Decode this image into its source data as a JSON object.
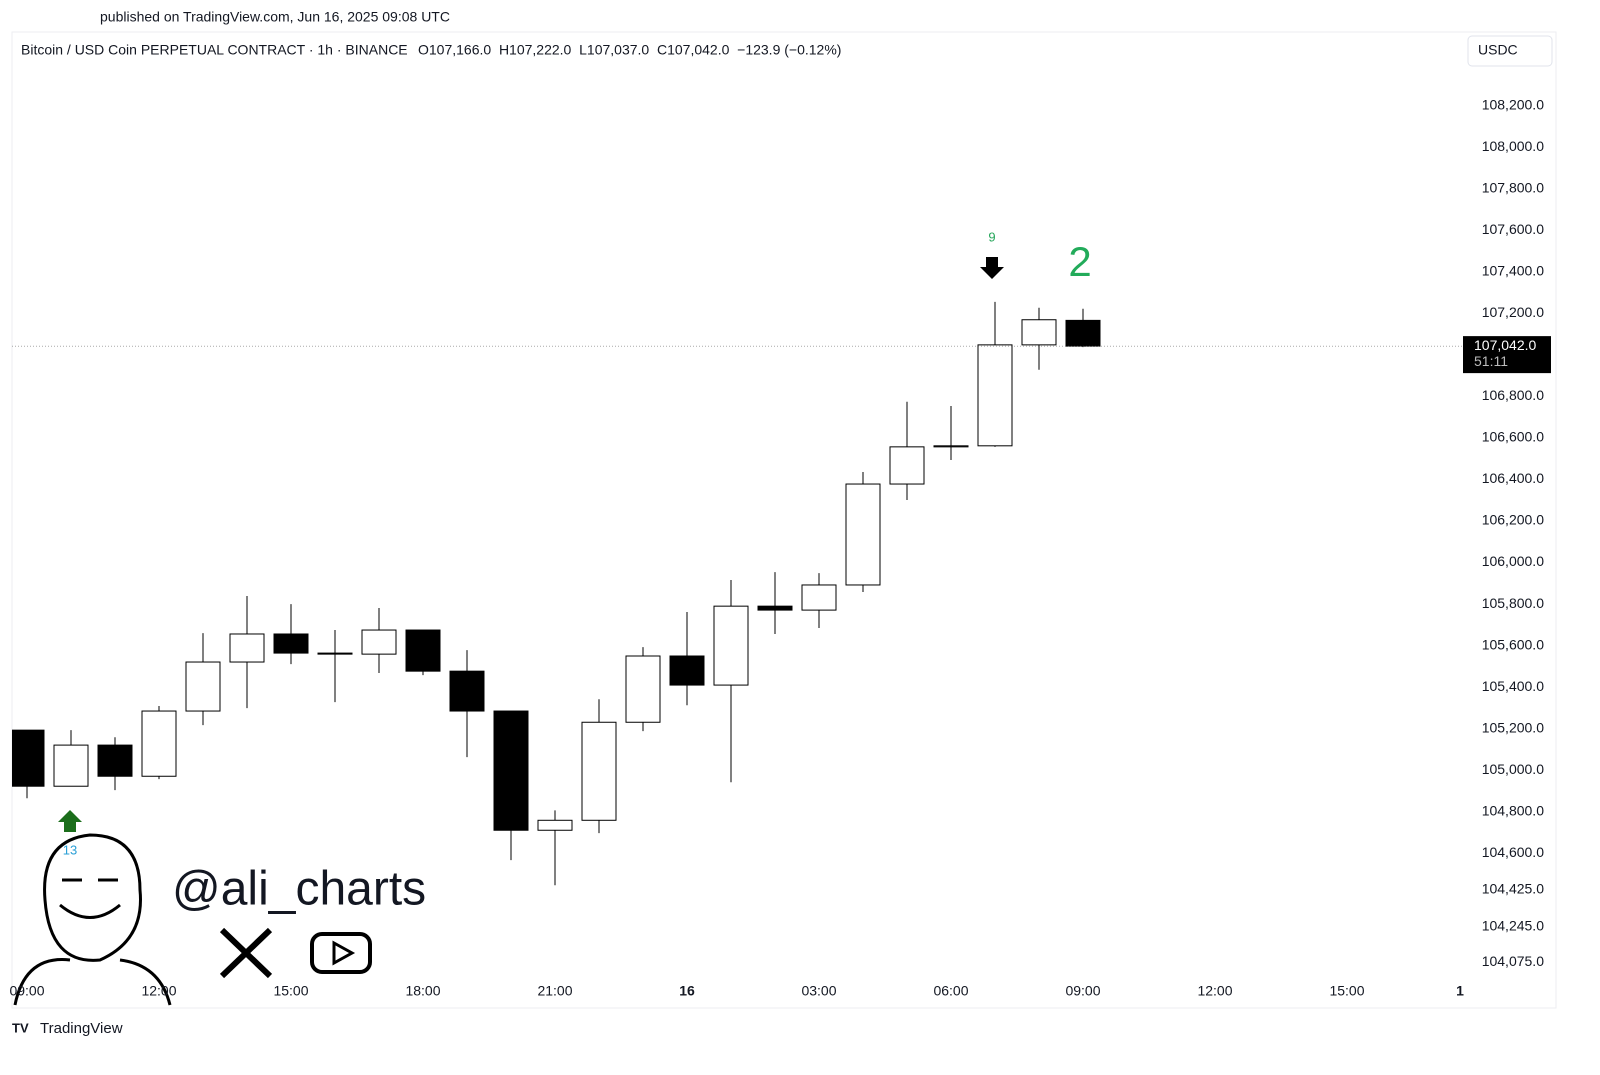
{
  "published": "published on TradingView.com, Jun 16, 2025 09:08 UTC",
  "branding": "TradingView",
  "watermark": "@ali_charts",
  "currency": "USDC",
  "chart_data": {
    "type": "candlestick",
    "title": "Bitcoin / USD Coin PERPETUAL CONTRACT · 1h · BINANCE",
    "ohlc_text": "O107,166.0  H107,222.0  L107,037.0  C107,042.0  −123.9 (−0.12%)",
    "categories": [
      "09:00",
      null,
      null,
      "12:00",
      null,
      null,
      "15:00",
      null,
      null,
      "18:00",
      null,
      null,
      "21:00",
      null,
      null,
      "16",
      null,
      null,
      "03:00",
      null,
      null,
      "06:00",
      null,
      null,
      "09:00",
      null,
      null,
      "12:00",
      null,
      null,
      "15:00",
      null,
      null,
      "1"
    ],
    "open": [
      105193,
      104923,
      105121,
      104971,
      105285,
      105521,
      105656,
      105564,
      105559,
      105675,
      105477,
      105285,
      104711,
      104759,
      105231,
      105550,
      105410,
      105790,
      105771,
      105892,
      106378,
      106557,
      106562,
      107048,
      107166,
      null,
      null,
      null,
      null,
      null,
      null,
      null,
      null,
      null
    ],
    "high": [
      105193,
      105193,
      105159,
      105309,
      105660,
      105839,
      105800,
      105675,
      105781,
      105675,
      105578,
      105285,
      104807,
      105342,
      105593,
      105762,
      105916,
      105954,
      105949,
      106436,
      106774,
      106754,
      107255,
      107227,
      107222,
      null,
      null,
      null,
      null,
      null,
      null,
      null,
      null,
      null
    ],
    "low": [
      104865,
      104923,
      104904,
      104957,
      105217,
      105299,
      105511,
      105328,
      105468,
      105458,
      105063,
      104567,
      104446,
      104697,
      105188,
      105313,
      104942,
      105656,
      105685,
      105858,
      106301,
      106494,
      106557,
      106928,
      107037,
      null,
      null,
      null,
      null,
      null,
      null,
      null,
      null,
      null
    ],
    "close": [
      104923,
      105121,
      104971,
      105285,
      105521,
      105656,
      105564,
      105559,
      105675,
      105477,
      105285,
      104711,
      104759,
      105231,
      105550,
      105410,
      105790,
      105771,
      105892,
      106378,
      106557,
      106562,
      107048,
      107169,
      107042,
      null,
      null,
      null,
      null,
      null,
      null,
      null,
      null,
      null
    ],
    "up_color": "#ffffff",
    "down_color": "#000000",
    "ylim": [
      103860,
      108540
    ],
    "yticks": [
      {
        "value": 108200,
        "label": "108,200.0"
      },
      {
        "value": 108000,
        "label": "108,000.0"
      },
      {
        "value": 107800,
        "label": "107,800.0"
      },
      {
        "value": 107600,
        "label": "107,600.0"
      },
      {
        "value": 107400,
        "label": "107,400.0"
      },
      {
        "value": 107200,
        "label": "107,200.0"
      },
      {
        "value": 106800,
        "label": "106,800.0"
      },
      {
        "value": 106600,
        "label": "106,600.0"
      },
      {
        "value": 106400,
        "label": "106,400.0"
      },
      {
        "value": 106200,
        "label": "106,200.0"
      },
      {
        "value": 106000,
        "label": "106,000.0"
      },
      {
        "value": 105800,
        "label": "105,800.0"
      },
      {
        "value": 105600,
        "label": "105,600.0"
      },
      {
        "value": 105400,
        "label": "105,400.0"
      },
      {
        "value": 105200,
        "label": "105,200.0"
      },
      {
        "value": 105000,
        "label": "105,000.0"
      },
      {
        "value": 104800,
        "label": "104,800.0"
      },
      {
        "value": 104600,
        "label": "104,600.0"
      },
      {
        "value": 104425,
        "label": "104,425.0"
      },
      {
        "value": 104245,
        "label": "104,245.0"
      },
      {
        "value": 104075,
        "label": "104,075.0"
      }
    ],
    "last_price": {
      "value": 107042,
      "label": "107,042.0"
    },
    "countdown": "51:11",
    "annotations": {
      "sell_count": "9",
      "count": "2",
      "buy_count": "13"
    }
  }
}
